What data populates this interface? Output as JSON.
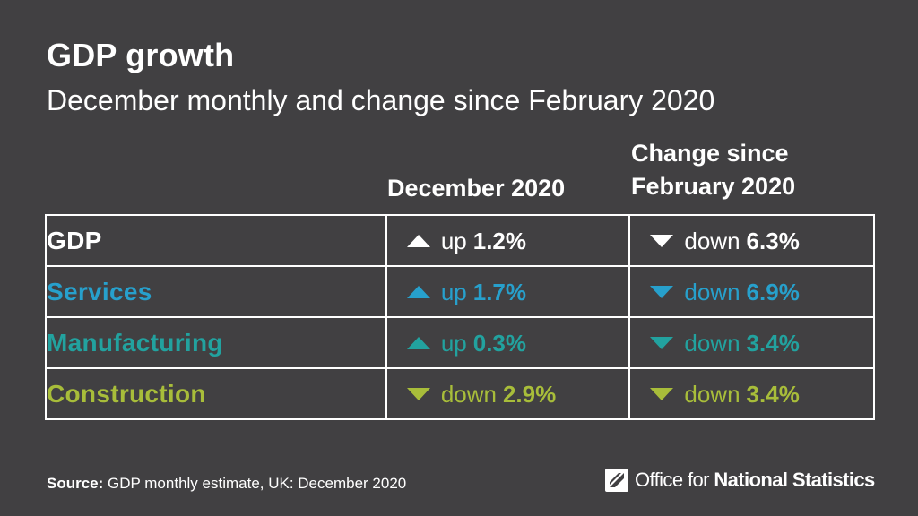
{
  "chart_data": {
    "type": "table",
    "title": "GDP growth",
    "subtitle": "December monthly and change since February 2020",
    "columns": [
      "December 2020",
      "Change since February 2020"
    ],
    "rows": [
      {
        "label": "GDP",
        "color": "#ffffff",
        "dec": {
          "direction": "up",
          "value": 1.2,
          "text": "1.2%"
        },
        "feb": {
          "direction": "down",
          "value": -6.3,
          "text": "6.3%"
        }
      },
      {
        "label": "Services",
        "color": "#27a0cc",
        "dec": {
          "direction": "up",
          "value": 1.7,
          "text": "1.7%"
        },
        "feb": {
          "direction": "down",
          "value": -6.9,
          "text": "6.9%"
        }
      },
      {
        "label": "Manufacturing",
        "color": "#22a29f",
        "dec": {
          "direction": "up",
          "value": 0.3,
          "text": "0.3%"
        },
        "feb": {
          "direction": "down",
          "value": -3.4,
          "text": "3.4%"
        }
      },
      {
        "label": "Construction",
        "color": "#a8bd3a",
        "dec": {
          "direction": "down",
          "value": -2.9,
          "text": "2.9%"
        },
        "feb": {
          "direction": "down",
          "value": -3.4,
          "text": "3.4%"
        }
      }
    ]
  },
  "header": {
    "title": "GDP growth",
    "subtitle": "December monthly and change since February 2020",
    "col_dec_line1": "December 2020",
    "col_feb_line1": "Change since",
    "col_feb_line2": "February 2020"
  },
  "words": {
    "up": "up",
    "down": "down"
  },
  "footer": {
    "source_label": "Source:",
    "source_text": " GDP monthly estimate, UK: December 2020",
    "logo_text": "Office for National Statistics",
    "logo_bold": "National Statistics",
    "logo_plain": "Office for "
  },
  "colors": {
    "background": "#414042",
    "text": "#ffffff",
    "services": "#27a0cc",
    "manufacturing": "#22a29f",
    "construction": "#a8bd3a"
  },
  "icons": {
    "up": "triangle-up-icon",
    "down": "triangle-down-icon",
    "logo": "ons-logo-icon"
  }
}
